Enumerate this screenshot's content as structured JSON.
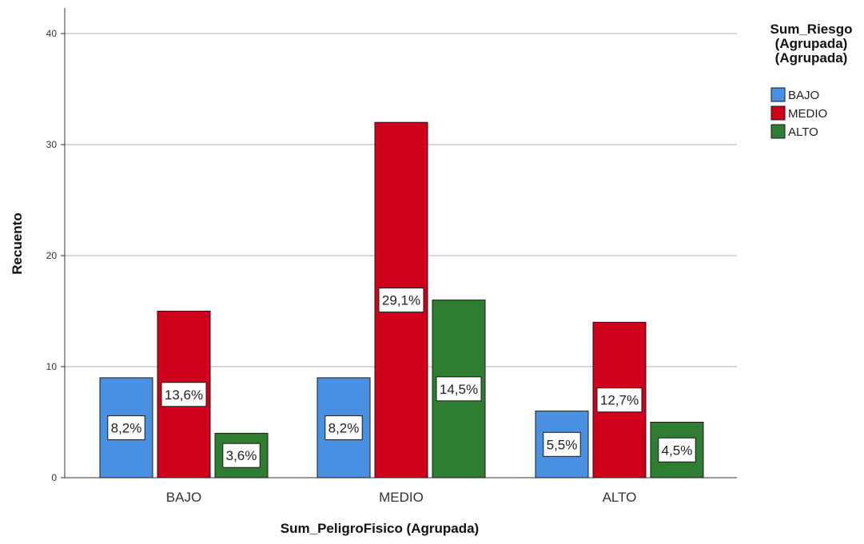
{
  "chart_data": {
    "type": "bar",
    "categories": [
      "BAJO",
      "MEDIO",
      "ALTO"
    ],
    "series": [
      {
        "name": "BAJO",
        "color": "#4a90e2",
        "values": [
          9,
          9,
          6
        ],
        "labels": [
          "8,2%",
          "8,2%",
          "5,5%"
        ]
      },
      {
        "name": "MEDIO",
        "color": "#d0021b",
        "values": [
          15,
          32,
          14
        ],
        "labels": [
          "13,6%",
          "29,1%",
          "12,7%"
        ]
      },
      {
        "name": "ALTO",
        "color": "#2e7d32",
        "values": [
          4,
          16,
          5
        ],
        "labels": [
          "3,6%",
          "14,5%",
          "4,5%"
        ]
      }
    ],
    "xlabel": "Sum_PeligroFisico (Agrupada)",
    "ylabel": "Recuento",
    "ylim": [
      0,
      40
    ],
    "yticks": [
      0,
      10,
      20,
      30,
      40
    ],
    "grid": true,
    "legend": {
      "title_lines": [
        "Sum_Riesgo",
        "(Agrupada)",
        "(Agrupada)"
      ],
      "placement": "right"
    }
  }
}
